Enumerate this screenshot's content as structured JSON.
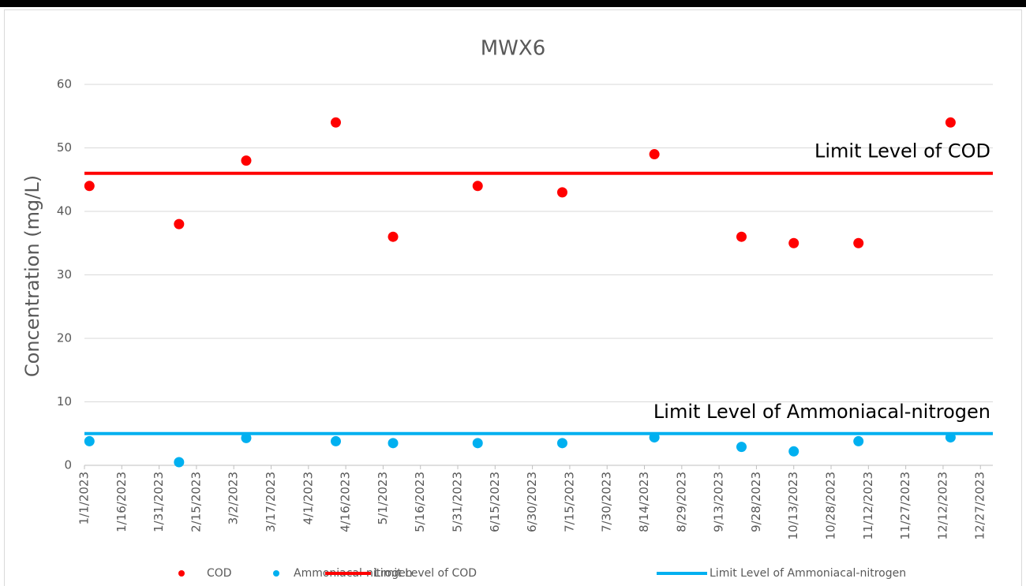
{
  "chart_data": {
    "type": "scatter",
    "title": "MWX6",
    "y_label": "Concentration (mg/L)",
    "xlim": [
      "1/1/2023",
      "1/1/2024"
    ],
    "xticks": [
      "1/1/2023",
      "1/16/2023",
      "1/31/2023",
      "2/15/2023",
      "3/2/2023",
      "3/17/2023",
      "4/1/2023",
      "4/16/2023",
      "5/1/2023",
      "5/16/2023",
      "5/31/2023",
      "6/15/2023",
      "6/30/2023",
      "7/15/2023",
      "7/30/2023",
      "8/14/2023",
      "8/29/2023",
      "9/13/2023",
      "9/28/2023",
      "10/13/2023",
      "10/28/2023",
      "11/12/2023",
      "11/27/2023",
      "12/12/2023",
      "12/27/2023"
    ],
    "ylim": [
      0,
      60
    ],
    "yticks": [
      0,
      10,
      20,
      30,
      40,
      50,
      60
    ],
    "grid": true,
    "legend": "bottom",
    "x": [
      "1/3/2023",
      "2/8/2023",
      "3/7/2023",
      "4/12/2023",
      "5/5/2023",
      "6/8/2023",
      "7/12/2023",
      "8/18/2023",
      "9/22/2023",
      "10/13/2023",
      "11/8/2023",
      "12/15/2023"
    ],
    "series": [
      {
        "name": "COD",
        "color": "#ff0000",
        "values": [
          44,
          38,
          48,
          54,
          36,
          44,
          43,
          49,
          36,
          35,
          35,
          54
        ]
      },
      {
        "name": "Ammoniacal-nitrogen",
        "color": "#00b0f0",
        "values": [
          3.8,
          0.5,
          4.3,
          3.8,
          3.5,
          3.5,
          3.5,
          4.4,
          2.9,
          2.2,
          3.8,
          4.4
        ]
      }
    ],
    "limit_lines": [
      {
        "name": "Limit Level of COD",
        "color": "#ff0000",
        "value": 46,
        "annotation": "Limit Level of COD"
      },
      {
        "name": "Limit Level of Ammoniacal-nitrogen",
        "color": "#00b0f0",
        "value": 5,
        "annotation": "Limit Level of Ammoniacal-nitrogen"
      }
    ]
  }
}
